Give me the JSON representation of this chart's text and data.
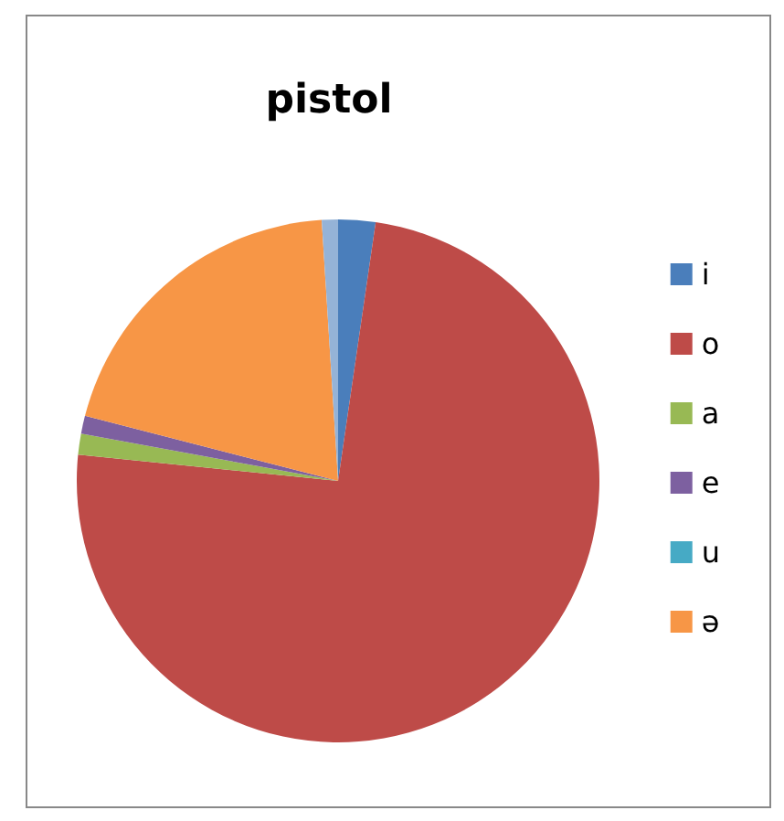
{
  "chart_data": {
    "type": "pie",
    "title": "pistol",
    "categories": [
      "i",
      "o",
      "a",
      "e",
      "u",
      "ə",
      null
    ],
    "values": [
      2.3,
      74.3,
      1.3,
      1.1,
      0,
      20,
      1
    ],
    "colors": [
      "#4a7ebb",
      "#be4b48",
      "#98b954",
      "#7d60a0",
      "#46aac5",
      "#f79646",
      "#95b3d7"
    ],
    "legend": "right"
  }
}
